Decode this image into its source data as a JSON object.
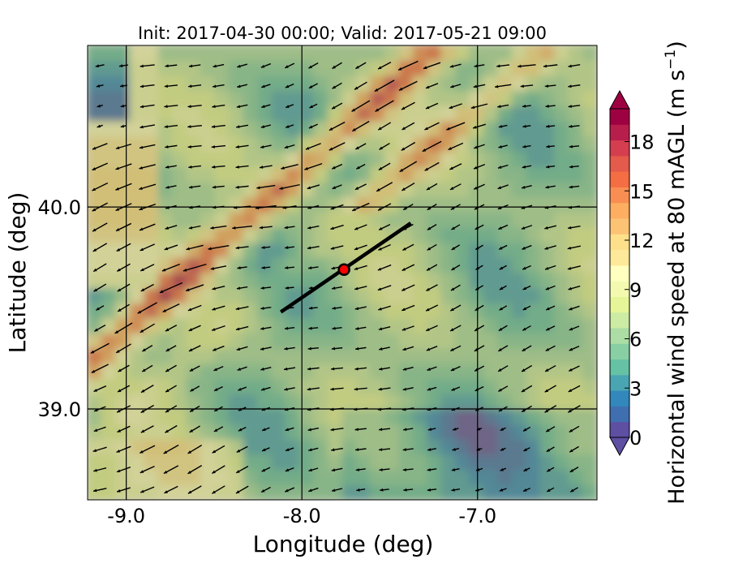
{
  "chart_data": {
    "type": "heatmap",
    "title": "Init: 2017-04-30 00:00; Valid: 2017-05-21 09:00",
    "xlabel": "Longitude (deg)",
    "ylabel": "Latitude (deg)",
    "xlim": [
      -9.22,
      -6.32
    ],
    "ylim": [
      38.55,
      40.8
    ],
    "x_ticks": [
      -9.0,
      -8.0,
      -7.0
    ],
    "x_tick_labels": [
      "-9.0",
      "-8.0",
      "-7.0"
    ],
    "y_ticks": [
      39.0,
      40.0
    ],
    "y_tick_labels": [
      "39.0",
      "40.0"
    ],
    "grid": true,
    "colorbar": {
      "label_main": "Horizontal wind speed at 80 mAGL (m s",
      "label_sup": "−1",
      "label_end": ")",
      "min": 0,
      "max": 20,
      "extend": "both",
      "ticks": [
        0,
        3,
        6,
        9,
        12,
        15,
        18
      ],
      "tick_labels": [
        "0",
        "3",
        "6",
        "9",
        "12",
        "15",
        "18"
      ],
      "colormap": "Spectral_r",
      "colors": [
        "#5e4fa2",
        "#3f6fb0",
        "#3288bd",
        "#4aa5b2",
        "#66c2a5",
        "#88d0a4",
        "#abdda4",
        "#cceba3",
        "#e6f598",
        "#f3fab0",
        "#ffffbf",
        "#fee89a",
        "#fee08b",
        "#fdc374",
        "#fdae61",
        "#f98e52",
        "#f46d43",
        "#e45a4b",
        "#d53e4f",
        "#b81e4c",
        "#9e0142"
      ]
    },
    "transect": {
      "start": [
        -8.12,
        39.48
      ],
      "end": [
        -7.38,
        39.92
      ]
    },
    "marker": {
      "lon": -7.76,
      "lat": 39.69,
      "color": "#ff0000"
    }
  }
}
